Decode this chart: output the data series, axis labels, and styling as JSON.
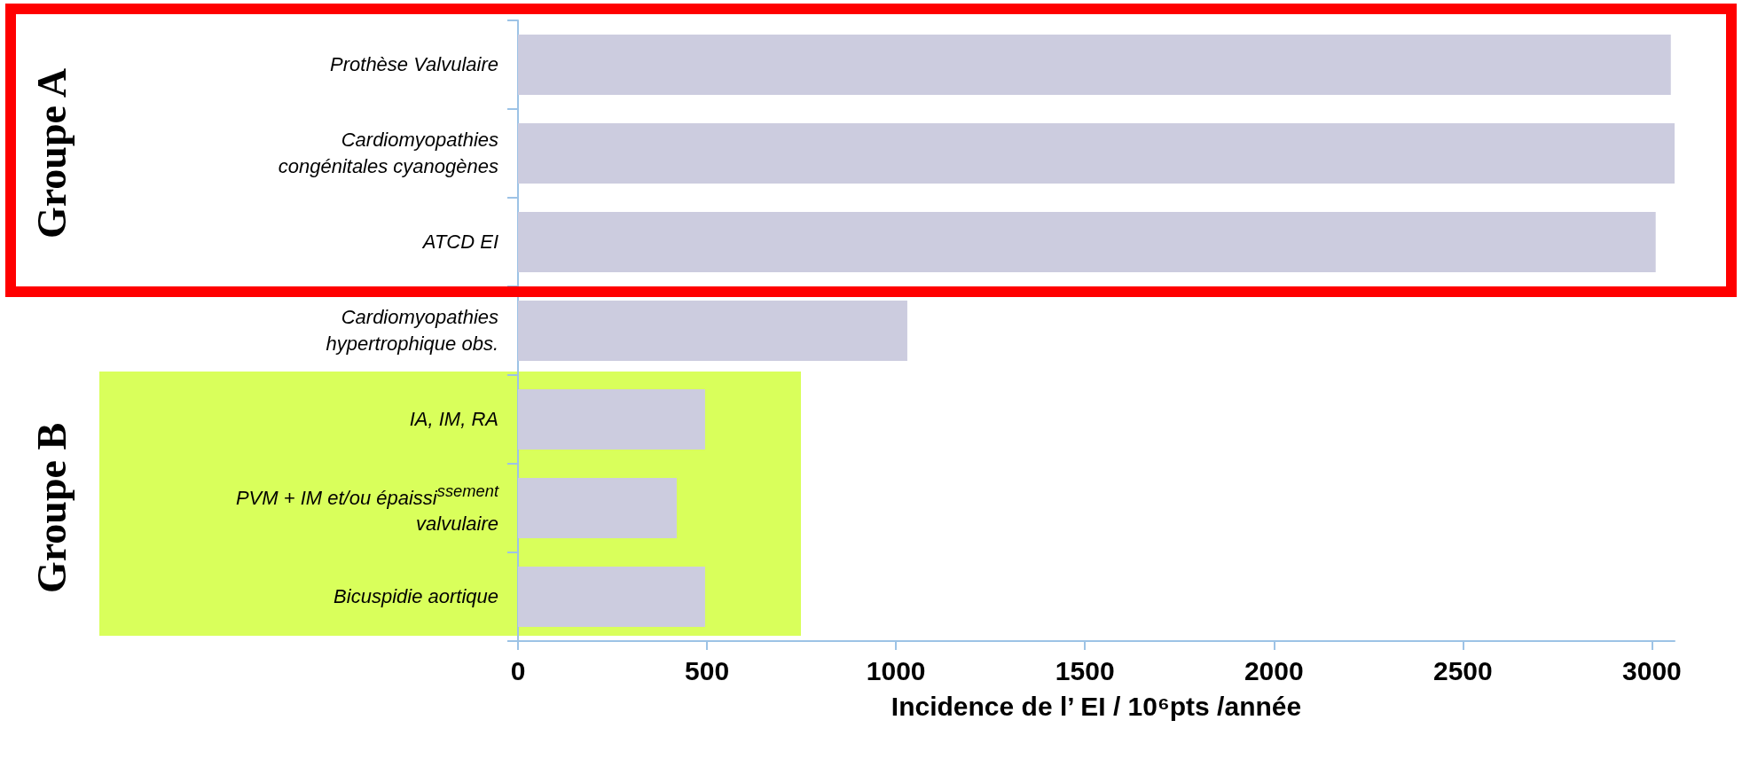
{
  "chart_data": {
    "type": "bar",
    "orientation": "horizontal",
    "categories": [
      "Prothèse Valvulaire",
      "Cardiomyopathies\ncongénitales cyanogènes",
      "ATCD EI",
      "Cardiomyopathies\nhypertrophique obs.",
      "IA, IM, RA",
      "PVM + IM et/ou épaissi$^{ssement}$\nvalvulaire",
      "Bicuspidie aortique"
    ],
    "values": [
      3050,
      3060,
      3010,
      1030,
      495,
      420,
      495
    ],
    "color": "#ccccdf",
    "xlim": [
      0,
      3060
    ],
    "xticks": [
      0,
      500,
      1000,
      1500,
      2000,
      2500,
      3000
    ],
    "xlabel": "Incidence de l’ EI / 10⁶pts /année",
    "annotations": [
      "Groupe A",
      "Groupe B"
    ],
    "grid": false
  }
}
